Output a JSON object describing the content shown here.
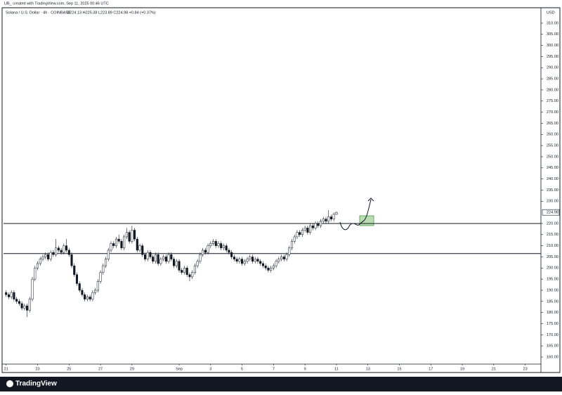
{
  "header": {
    "credit": "UB_ created with TradingView.com, Sep 11, 2025 00:46 UTC",
    "symbol": "Solana / U.S. Dollar · 4h · COINBASE",
    "ohlc_text": "O224.13 H225.38 L223.89 C224.98 +0.84 (+0.37%)",
    "currency": "USD",
    "logo": "TradingView"
  },
  "chart_data": {
    "type": "candlestick",
    "up_color": "#ffffff",
    "down_color": "#131722",
    "border_color": "#131722",
    "open": [
      189,
      188,
      187,
      189,
      186,
      185,
      184,
      182,
      183,
      181,
      186,
      195,
      200,
      202,
      204,
      205,
      206,
      204,
      207,
      206,
      209,
      208,
      207,
      210,
      208,
      206,
      201,
      197,
      193,
      190,
      188,
      186,
      187,
      186,
      189,
      190,
      194,
      198,
      201,
      204,
      208,
      211,
      210,
      213,
      212,
      209,
      214,
      216,
      212,
      217,
      213,
      208,
      210,
      206,
      204,
      207,
      205,
      203,
      206,
      202,
      204,
      205,
      203,
      206,
      204,
      201,
      203,
      199,
      198,
      200,
      197,
      196,
      198,
      201,
      203,
      206,
      208,
      207,
      210,
      211,
      212,
      210,
      211,
      209,
      210,
      208,
      207,
      205,
      204,
      203,
      204,
      202,
      203,
      204,
      205,
      203,
      204,
      203,
      202,
      201,
      200,
      199,
      200,
      201,
      203,
      204,
      205,
      204,
      206,
      209,
      212,
      214,
      216,
      215,
      217,
      218,
      216,
      219,
      218,
      220,
      219,
      221,
      222,
      221,
      223,
      222,
      224.13
    ],
    "high": [
      190,
      189,
      190,
      190,
      187,
      186,
      185,
      184,
      184,
      187,
      196,
      201,
      203,
      205,
      206,
      207,
      207,
      208,
      208,
      213,
      210,
      209,
      211,
      213,
      209,
      207,
      202,
      198,
      194,
      191,
      189,
      188,
      188,
      190,
      191,
      195,
      199,
      202,
      205,
      209,
      212,
      212,
      214,
      215,
      213,
      215,
      218,
      217,
      219,
      218,
      214,
      211,
      211,
      207,
      208,
      208,
      206,
      207,
      207,
      205,
      206,
      206,
      207,
      207,
      205,
      204,
      204,
      200,
      201,
      201,
      198,
      199,
      202,
      204,
      207,
      209,
      209,
      211,
      212,
      213,
      213,
      212,
      212,
      211,
      211,
      209,
      208,
      206,
      205,
      205,
      205,
      204,
      205,
      206,
      206,
      205,
      205,
      204,
      203,
      202,
      201,
      201,
      202,
      204,
      205,
      206,
      206,
      207,
      210,
      213,
      215,
      217,
      217,
      218,
      219,
      219,
      220,
      220,
      221,
      221,
      222,
      223,
      223,
      226,
      224,
      225,
      225.38
    ],
    "low": [
      187,
      186,
      186,
      185,
      184,
      183,
      181,
      181,
      178,
      180,
      185,
      194,
      199,
      201,
      203,
      204,
      203,
      203,
      205,
      205,
      207,
      206,
      206,
      207,
      205,
      200,
      196,
      192,
      189,
      187,
      185,
      185,
      185,
      185,
      188,
      189,
      193,
      197,
      200,
      203,
      207,
      209,
      209,
      211,
      208,
      208,
      213,
      211,
      211,
      212,
      207,
      207,
      205,
      203,
      203,
      204,
      202,
      202,
      201,
      201,
      203,
      202,
      202,
      203,
      200,
      200,
      198,
      197,
      197,
      196,
      194,
      195,
      197,
      200,
      202,
      205,
      206,
      206,
      209,
      210,
      209,
      209,
      208,
      208,
      207,
      206,
      204,
      203,
      202,
      202,
      201,
      201,
      202,
      203,
      202,
      202,
      202,
      201,
      200,
      199,
      198,
      198,
      199,
      200,
      202,
      203,
      203,
      203,
      205,
      208,
      211,
      213,
      214,
      214,
      216,
      215,
      215,
      217,
      217,
      218,
      218,
      220,
      220,
      220,
      221,
      221,
      223.89
    ],
    "close": [
      188,
      187,
      189,
      186,
      185,
      184,
      182,
      183,
      181,
      186,
      195,
      200,
      202,
      204,
      205,
      206,
      204,
      207,
      206,
      209,
      208,
      207,
      210,
      208,
      206,
      201,
      197,
      193,
      190,
      188,
      186,
      187,
      186,
      189,
      190,
      194,
      198,
      201,
      204,
      208,
      211,
      210,
      213,
      212,
      209,
      214,
      216,
      212,
      217,
      213,
      208,
      210,
      206,
      204,
      207,
      205,
      203,
      206,
      202,
      204,
      205,
      203,
      206,
      204,
      201,
      203,
      199,
      198,
      200,
      197,
      196,
      198,
      201,
      203,
      206,
      208,
      207,
      210,
      211,
      212,
      210,
      211,
      209,
      210,
      208,
      207,
      205,
      204,
      203,
      204,
      202,
      203,
      204,
      205,
      203,
      204,
      203,
      202,
      201,
      200,
      199,
      200,
      201,
      203,
      204,
      205,
      204,
      206,
      209,
      212,
      214,
      216,
      215,
      217,
      218,
      216,
      219,
      218,
      220,
      219,
      221,
      222,
      221,
      223,
      222,
      224.13,
      224.98
    ],
    "hlines": [
      220,
      206.5
    ],
    "xlim": [
      -1,
      204
    ],
    "xticks": [
      {
        "value": 0,
        "label": "21"
      },
      {
        "value": 12,
        "label": "23"
      },
      {
        "value": 24,
        "label": "25"
      },
      {
        "value": 36,
        "label": "27"
      },
      {
        "value": 48,
        "label": "29"
      },
      {
        "value": 66,
        "label": "Sep"
      },
      {
        "value": 78,
        "label": "3"
      },
      {
        "value": 90,
        "label": "5"
      },
      {
        "value": 102,
        "label": "7"
      },
      {
        "value": 114,
        "label": "9"
      },
      {
        "value": 126,
        "label": "11"
      },
      {
        "value": 138,
        "label": "13"
      },
      {
        "value": 150,
        "label": "15"
      },
      {
        "value": 162,
        "label": "17"
      },
      {
        "value": 174,
        "label": "19"
      },
      {
        "value": 186,
        "label": "21"
      },
      {
        "value": 198,
        "label": "23"
      }
    ],
    "ylim": [
      156.2,
      316.3
    ],
    "yticks": [
      {
        "value": 160,
        "label": "160.00"
      },
      {
        "value": 165,
        "label": "165.00"
      },
      {
        "value": 170,
        "label": "170.00"
      },
      {
        "value": 175,
        "label": "175.00"
      },
      {
        "value": 180,
        "label": "180.00"
      },
      {
        "value": 185,
        "label": "185.00"
      },
      {
        "value": 190,
        "label": "190.00"
      },
      {
        "value": 195,
        "label": "195.00"
      },
      {
        "value": 200,
        "label": "200.00"
      },
      {
        "value": 205,
        "label": "205.00"
      },
      {
        "value": 210,
        "label": "210.00"
      },
      {
        "value": 215,
        "label": "215.00"
      },
      {
        "value": 220,
        "label": "220.00"
      },
      {
        "value": 230,
        "label": "230.00"
      },
      {
        "value": 235,
        "label": "235.00"
      },
      {
        "value": 240,
        "label": "240.00"
      },
      {
        "value": 245,
        "label": "245.00"
      },
      {
        "value": 250,
        "label": "250.00"
      },
      {
        "value": 255,
        "label": "255.00"
      },
      {
        "value": 260,
        "label": "260.00"
      },
      {
        "value": 265,
        "label": "265.00"
      },
      {
        "value": 270,
        "label": "270.00"
      },
      {
        "value": 275,
        "label": "275.00"
      },
      {
        "value": 280,
        "label": "280.00"
      },
      {
        "value": 285,
        "label": "285.00"
      },
      {
        "value": 290,
        "label": "290.00"
      },
      {
        "value": 295,
        "label": "295.00"
      },
      {
        "value": 300,
        "label": "300.00"
      },
      {
        "value": 305,
        "label": "305.00"
      },
      {
        "value": 310,
        "label": "310.00"
      }
    ],
    "last_price": 224.98
  }
}
